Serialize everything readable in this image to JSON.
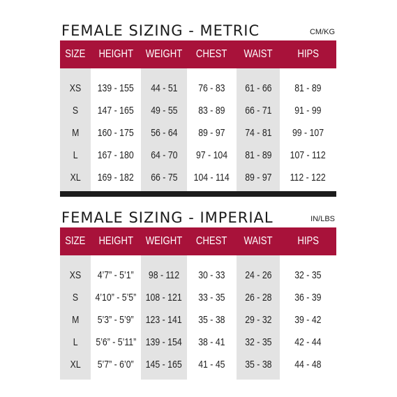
{
  "colors": {
    "header_bg": "#a8123a",
    "header_text": "#ffffff",
    "shaded_column": "#e3e3e3",
    "divider": "#1c1c1c"
  },
  "metric": {
    "title": "FEMALE SIZING - METRIC",
    "unit": "CM/KG",
    "headers": [
      "SIZE",
      "HEIGHT",
      "WEIGHT",
      "CHEST",
      "WAIST",
      "HIPS"
    ],
    "rows": [
      [
        "XS",
        "139 - 155",
        "44 - 51",
        "76 - 83",
        "61 - 66",
        "81 - 89"
      ],
      [
        "S",
        "147 - 165",
        "49 - 55",
        "83 - 89",
        "66 - 71",
        "91 - 99"
      ],
      [
        "M",
        "160 - 175",
        "56 - 64",
        "89 - 97",
        "74 - 81",
        "99 - 107"
      ],
      [
        "L",
        "167 - 180",
        "64 - 70",
        "97 - 104",
        "81 - 89",
        "107 - 112"
      ],
      [
        "XL",
        "169 - 182",
        "66 - 75",
        "104 - 114",
        "89 - 97",
        "112 - 122"
      ]
    ]
  },
  "imperial": {
    "title": "FEMALE SIZING - IMPERIAL",
    "unit": "IN/LBS",
    "headers": [
      "SIZE",
      "HEIGHT",
      "WEIGHT",
      "CHEST",
      "WAIST",
      "HIPS"
    ],
    "rows": [
      [
        "XS",
        "4’7” - 5’1”",
        "98 - 112",
        "30 - 33",
        "24 - 26",
        "32 - 35"
      ],
      [
        "S",
        "4’10” - 5’5”",
        "108 - 121",
        "33 - 35",
        "26 - 28",
        "36 - 39"
      ],
      [
        "M",
        "5’3” - 5’9”",
        "123 - 141",
        "35 - 38",
        "29 - 32",
        "39 - 42"
      ],
      [
        "L",
        "5’6” - 5’11”",
        "139 - 154",
        "38 - 41",
        "32 - 35",
        "42 - 44"
      ],
      [
        "XL",
        "5’7” - 6’0”",
        "145 - 165",
        "41 - 45",
        "35 - 38",
        "44 - 48"
      ]
    ]
  }
}
